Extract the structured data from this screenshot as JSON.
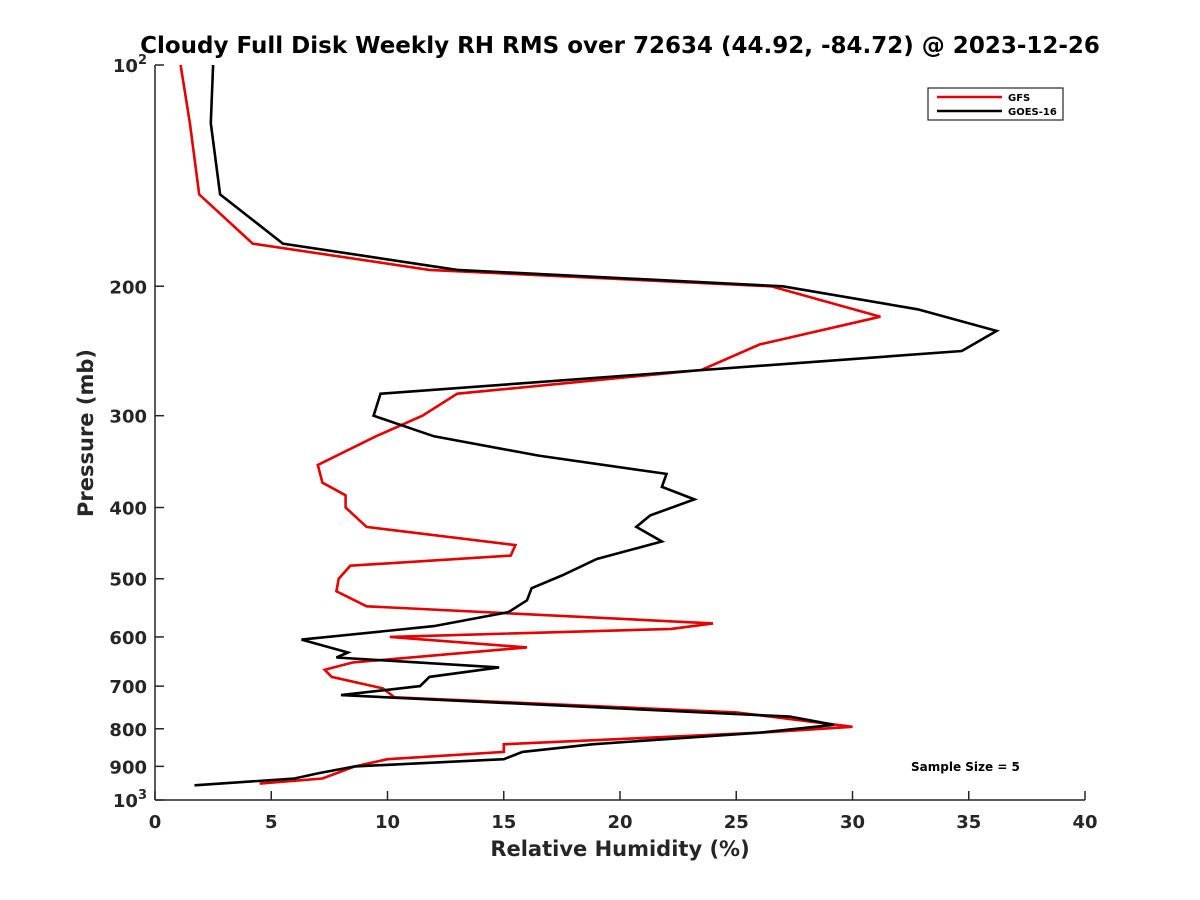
{
  "chart_data": {
    "type": "line",
    "title": "Cloudy Full Disk Weekly RH RMS over 72634 (44.92, -84.72) @ 2023-12-26",
    "xlabel": "Relative Humidity (%)",
    "ylabel": "Pressure (mb)",
    "xlim": [
      0,
      40
    ],
    "ylim": [
      100,
      1000
    ],
    "yscale": "log",
    "y_reversed": true,
    "grid": false,
    "legend_position": "top-right",
    "xticks": [
      0,
      5,
      10,
      15,
      20,
      25,
      30,
      35,
      40
    ],
    "xtick_labels": [
      "0",
      "5",
      "10",
      "15",
      "20",
      "25",
      "30",
      "35",
      "40"
    ],
    "yticks": [
      100,
      200,
      300,
      400,
      500,
      600,
      700,
      800,
      900,
      1000
    ],
    "ytick_labels": [
      {
        "base": "10",
        "exp": "2"
      },
      {
        "base": "200",
        "exp": ""
      },
      {
        "base": "300",
        "exp": ""
      },
      {
        "base": "400",
        "exp": ""
      },
      {
        "base": "500",
        "exp": ""
      },
      {
        "base": "600",
        "exp": ""
      },
      {
        "base": "700",
        "exp": ""
      },
      {
        "base": "800",
        "exp": ""
      },
      {
        "base": "900",
        "exp": ""
      },
      {
        "base": "10",
        "exp": "3"
      }
    ],
    "annotation": "Sample Size = 5",
    "series": [
      {
        "name": "GFS",
        "color": "#e60000",
        "points": [
          [
            1.1,
            100
          ],
          [
            1.5,
            120
          ],
          [
            1.9,
            150
          ],
          [
            4.2,
            175
          ],
          [
            11.8,
            190
          ],
          [
            26.5,
            200
          ],
          [
            31.2,
            220
          ],
          [
            26.0,
            240
          ],
          [
            23.5,
            260
          ],
          [
            13.0,
            280
          ],
          [
            11.5,
            300
          ],
          [
            9.5,
            320
          ],
          [
            7.0,
            350
          ],
          [
            7.2,
            370
          ],
          [
            8.2,
            385
          ],
          [
            8.2,
            400
          ],
          [
            9.1,
            425
          ],
          [
            15.5,
            450
          ],
          [
            15.3,
            465
          ],
          [
            8.4,
            480
          ],
          [
            7.9,
            500
          ],
          [
            7.8,
            520
          ],
          [
            9.1,
            545
          ],
          [
            24.0,
            575
          ],
          [
            22.2,
            585
          ],
          [
            10.1,
            600
          ],
          [
            16.0,
            620
          ],
          [
            8.5,
            650
          ],
          [
            7.3,
            665
          ],
          [
            7.6,
            680
          ],
          [
            9.8,
            705
          ],
          [
            10.3,
            725
          ],
          [
            25.0,
            760
          ],
          [
            30.0,
            795
          ],
          [
            26.0,
            810
          ],
          [
            15.0,
            840
          ],
          [
            15.0,
            860
          ],
          [
            10.0,
            880
          ],
          [
            8.6,
            900
          ],
          [
            7.2,
            935
          ],
          [
            4.5,
            950
          ]
        ]
      },
      {
        "name": "GOES-16",
        "color": "#000000",
        "points": [
          [
            2.5,
            100
          ],
          [
            2.4,
            120
          ],
          [
            2.8,
            150
          ],
          [
            5.5,
            175
          ],
          [
            13.0,
            190
          ],
          [
            27.0,
            200
          ],
          [
            32.8,
            215
          ],
          [
            36.2,
            230
          ],
          [
            34.7,
            245
          ],
          [
            9.7,
            280
          ],
          [
            9.4,
            300
          ],
          [
            12.0,
            320
          ],
          [
            16.5,
            340
          ],
          [
            22.0,
            360
          ],
          [
            21.8,
            375
          ],
          [
            23.2,
            390
          ],
          [
            21.3,
            410
          ],
          [
            20.7,
            425
          ],
          [
            21.8,
            445
          ],
          [
            19.0,
            470
          ],
          [
            17.5,
            495
          ],
          [
            16.2,
            515
          ],
          [
            16.0,
            535
          ],
          [
            15.2,
            555
          ],
          [
            12.0,
            580
          ],
          [
            6.3,
            605
          ],
          [
            8.3,
            630
          ],
          [
            7.8,
            640
          ],
          [
            14.8,
            660
          ],
          [
            11.8,
            680
          ],
          [
            11.4,
            700
          ],
          [
            8.0,
            720
          ],
          [
            27.3,
            770
          ],
          [
            29.2,
            790
          ],
          [
            26.0,
            810
          ],
          [
            18.8,
            840
          ],
          [
            15.8,
            860
          ],
          [
            15.0,
            880
          ],
          [
            8.6,
            900
          ],
          [
            7.0,
            920
          ],
          [
            6.0,
            935
          ],
          [
            1.7,
            955
          ]
        ]
      }
    ]
  }
}
